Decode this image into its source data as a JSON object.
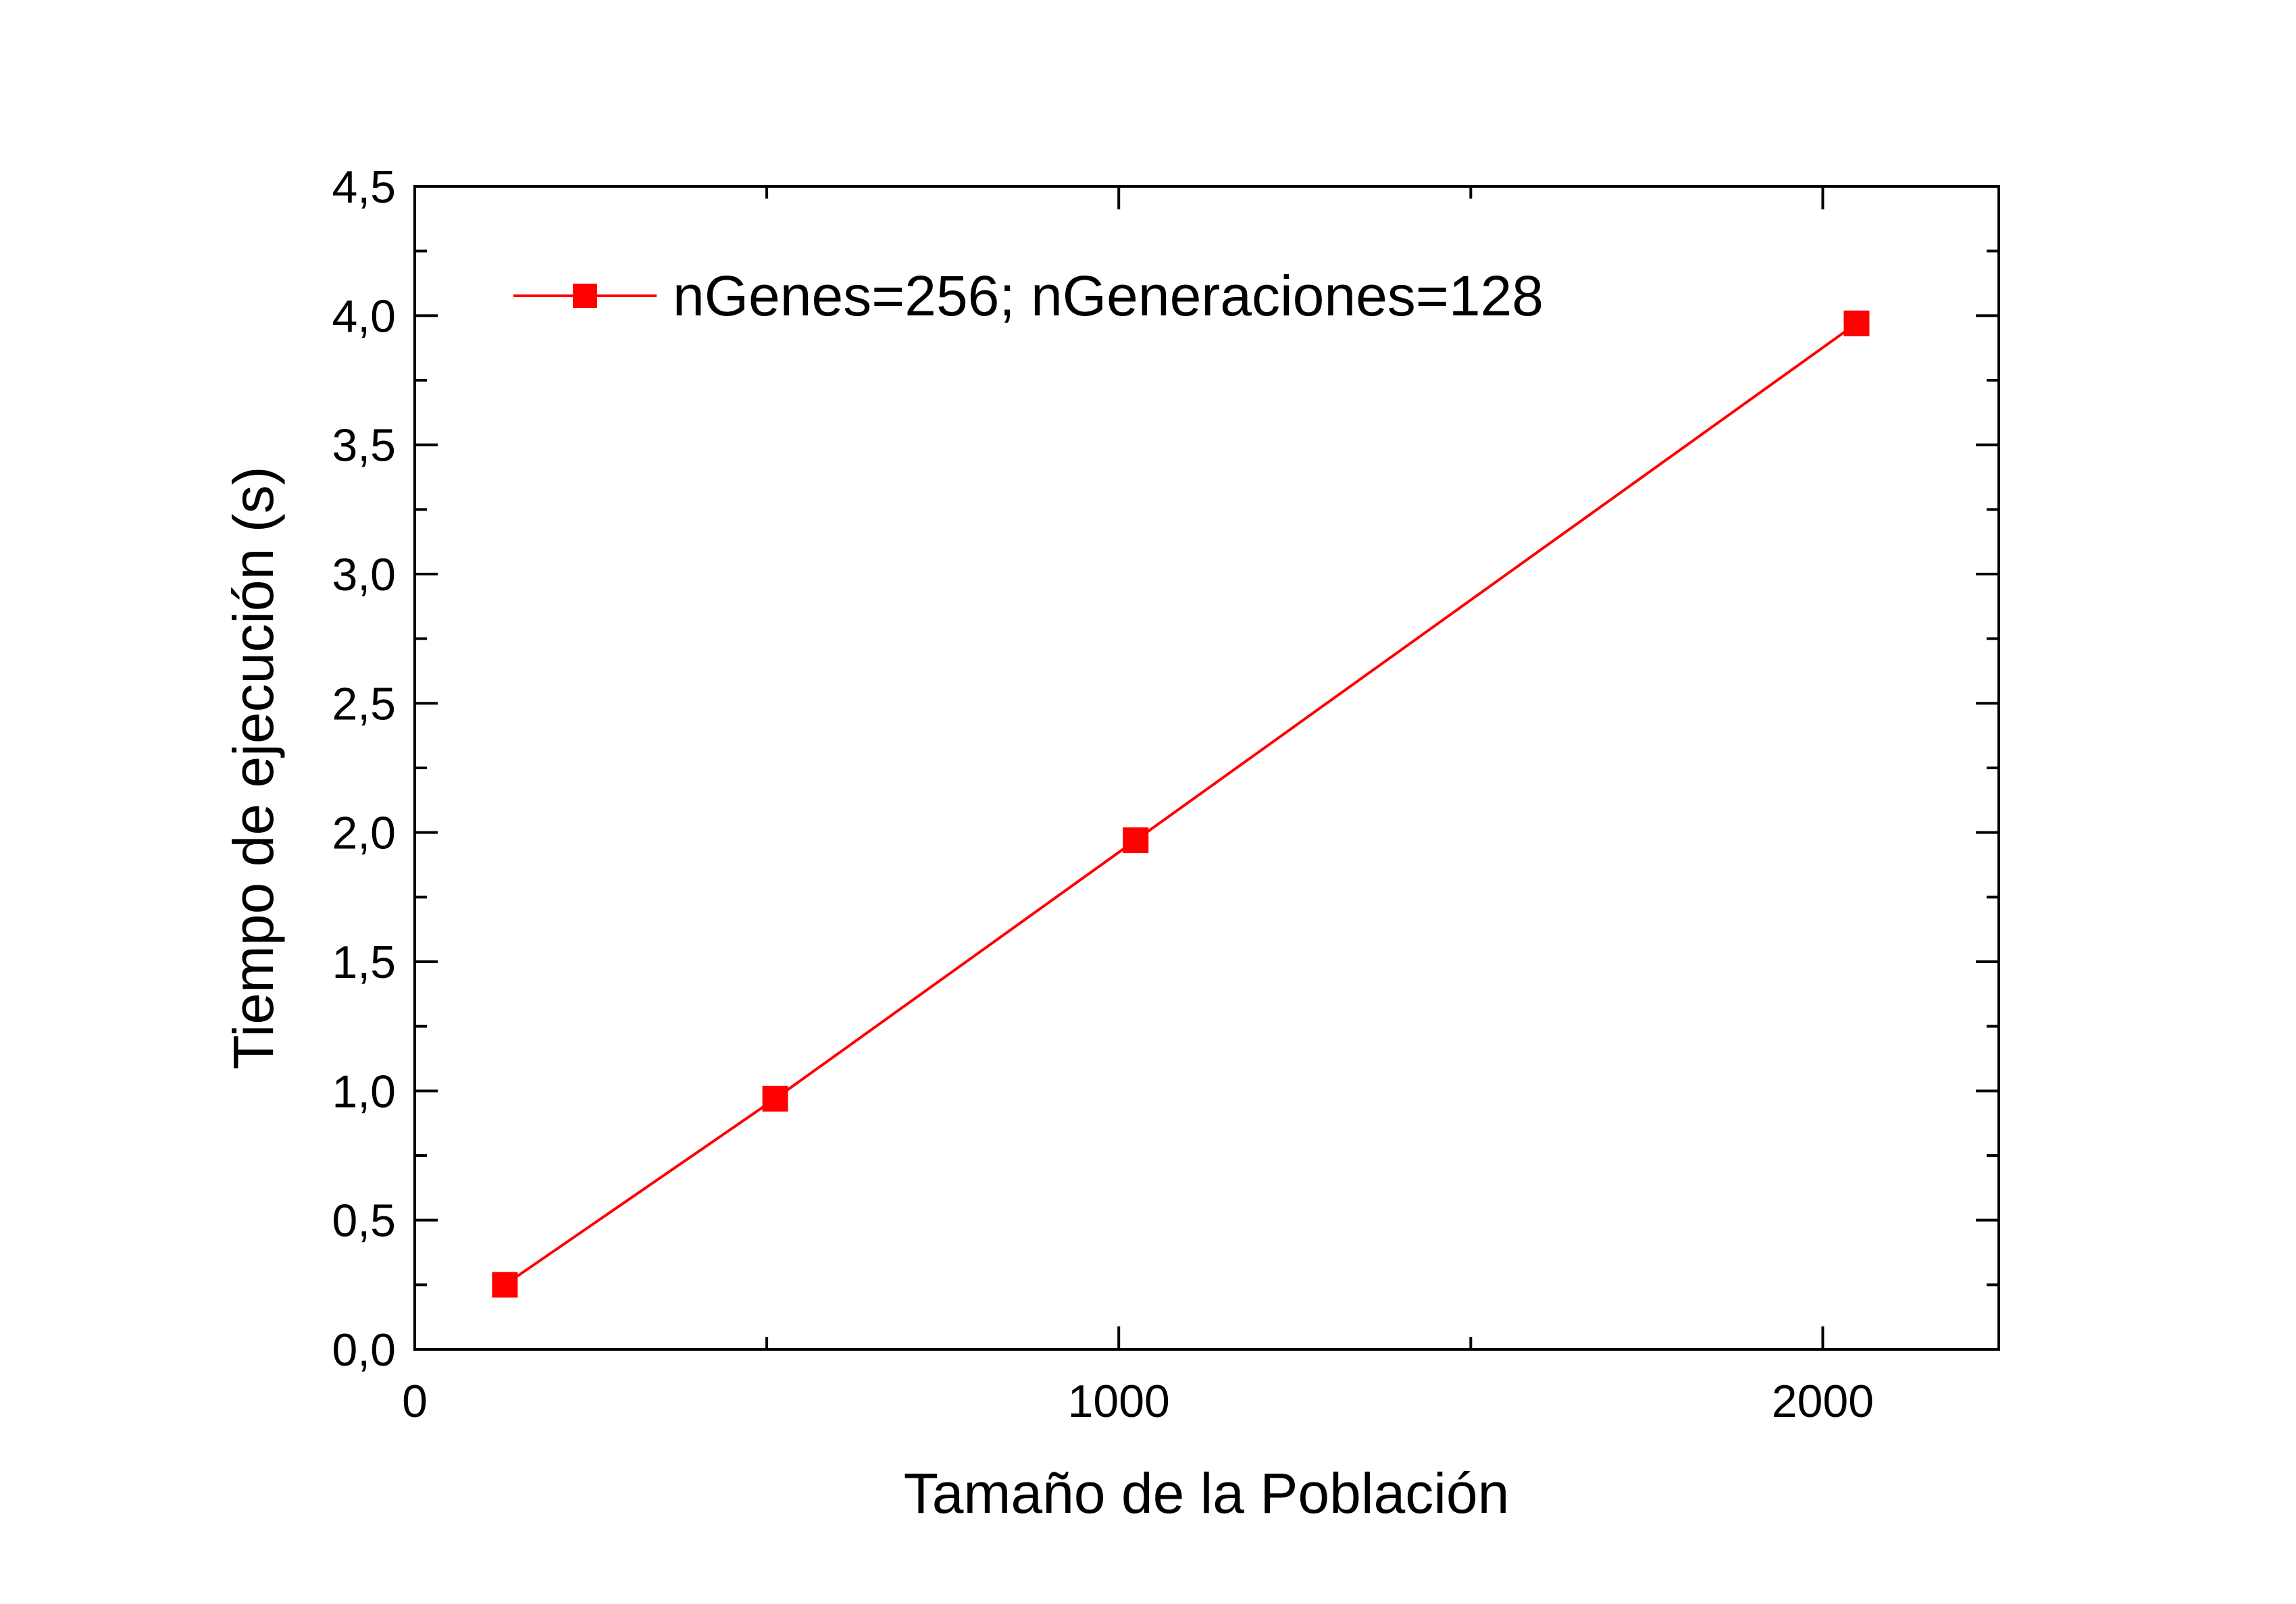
{
  "chart_data": {
    "type": "line",
    "title": "",
    "xlabel": "Tamaño de la Población",
    "ylabel": "Tiempo de ejecución (s)",
    "xlim": [
      0,
      2250
    ],
    "ylim": [
      0,
      4.5
    ],
    "xticks": [
      0,
      1000,
      2000
    ],
    "xtick_labels": [
      "0",
      "1000",
      "2000"
    ],
    "xminor_ticks": [
      500,
      1500
    ],
    "yticks": [
      0,
      0.5,
      1.0,
      1.5,
      2.0,
      2.5,
      3.0,
      3.5,
      4.0,
      4.5
    ],
    "ytick_labels": [
      "0,0",
      "0,5",
      "1,0",
      "1,5",
      "2,0",
      "2,5",
      "3,0",
      "3,5",
      "4,0",
      "4,5"
    ],
    "yminor_ticks": [
      0.25,
      0.75,
      1.25,
      1.75,
      2.25,
      2.75,
      3.25,
      3.75,
      4.25
    ],
    "grid": false,
    "legend_position": "top-left",
    "series": [
      {
        "name": "nGenes=256; nGeneraciones=128",
        "color": "#ff0000",
        "marker": "square",
        "x": [
          128,
          512,
          1024,
          2048
        ],
        "y": [
          0.25,
          0.97,
          1.97,
          3.97
        ]
      }
    ]
  }
}
